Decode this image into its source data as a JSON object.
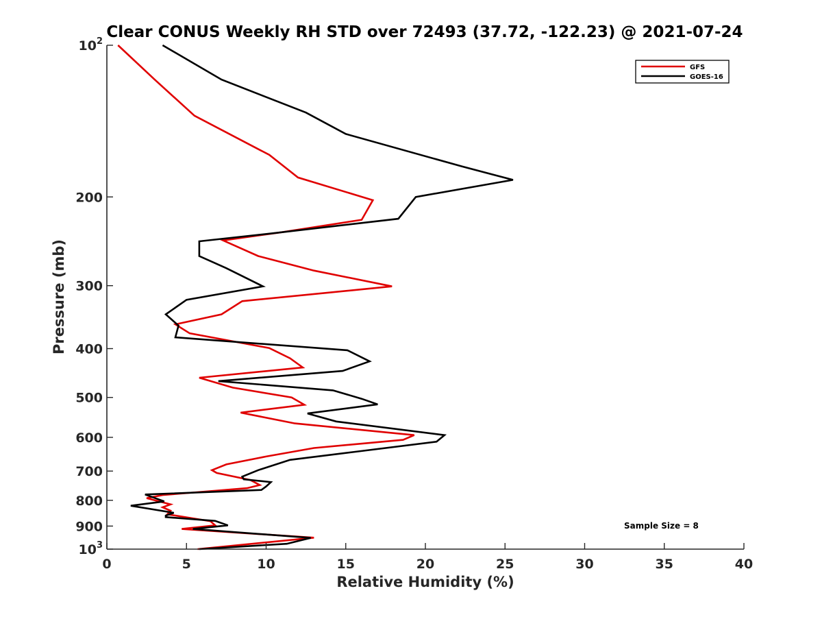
{
  "chart_data": {
    "type": "line",
    "title": "Clear CONUS Weekly RH STD over 72493 (37.72, -122.23) @ 2021-07-24",
    "xlabel": "Relative Humidity (%)",
    "ylabel": "Pressure (mb)",
    "xlim": [
      0,
      40
    ],
    "ylim": [
      100,
      1000
    ],
    "y_scale": "log",
    "y_reversed": true,
    "x_ticks": [
      0,
      5,
      10,
      15,
      20,
      25,
      30,
      35,
      40
    ],
    "x_tick_labels": [
      "0",
      "5",
      "10",
      "15",
      "20",
      "25",
      "30",
      "35",
      "40"
    ],
    "y_ticks": [
      100,
      200,
      300,
      400,
      500,
      600,
      700,
      800,
      900,
      1000
    ],
    "y_tick_labels": [
      {
        "base": "10",
        "sup": "2"
      },
      {
        "base": "200",
        "sup": ""
      },
      {
        "base": "300",
        "sup": ""
      },
      {
        "base": "400",
        "sup": ""
      },
      {
        "base": "500",
        "sup": ""
      },
      {
        "base": "600",
        "sup": ""
      },
      {
        "base": "700",
        "sup": ""
      },
      {
        "base": "800",
        "sup": ""
      },
      {
        "base": "900",
        "sup": ""
      },
      {
        "base": "10",
        "sup": "3"
      }
    ],
    "grid": false,
    "legend_position": "top-right",
    "annotation": "Sample Size = 8",
    "series": [
      {
        "name": "GFS",
        "color": "#e00000",
        "points": [
          [
            0.7,
            100
          ],
          [
            3.0,
            117
          ],
          [
            5.5,
            138
          ],
          [
            10.2,
            165
          ],
          [
            12.0,
            183
          ],
          [
            16.7,
            203
          ],
          [
            16.0,
            222
          ],
          [
            11.0,
            235
          ],
          [
            7.3,
            244
          ],
          [
            9.5,
            262
          ],
          [
            13.0,
            280
          ],
          [
            17.9,
            301
          ],
          [
            8.5,
            322
          ],
          [
            7.2,
            342
          ],
          [
            4.3,
            358
          ],
          [
            5.2,
            373
          ],
          [
            10.2,
            399
          ],
          [
            11.5,
            418
          ],
          [
            12.3,
            436
          ],
          [
            5.8,
            457
          ],
          [
            7.9,
            478
          ],
          [
            11.6,
            500
          ],
          [
            12.4,
            517
          ],
          [
            8.4,
            536
          ],
          [
            11.8,
            563
          ],
          [
            19.3,
            594
          ],
          [
            18.6,
            607
          ],
          [
            13.0,
            630
          ],
          [
            10.0,
            655
          ],
          [
            7.5,
            679
          ],
          [
            6.6,
            697
          ],
          [
            6.9,
            706
          ],
          [
            9.0,
            729
          ],
          [
            9.6,
            746
          ],
          [
            8.8,
            757
          ],
          [
            3.5,
            781
          ],
          [
            2.5,
            792
          ],
          [
            4.0,
            815
          ],
          [
            3.5,
            826
          ],
          [
            4.0,
            839
          ],
          [
            3.8,
            853
          ],
          [
            6.5,
            880
          ],
          [
            6.8,
            897
          ],
          [
            4.7,
            912
          ],
          [
            13.0,
            949
          ],
          [
            5.7,
            1000
          ]
        ]
      },
      {
        "name": "GOES-16",
        "color": "#000000",
        "points": [
          [
            3.5,
            100
          ],
          [
            7.2,
            117
          ],
          [
            12.5,
            136
          ],
          [
            15.0,
            150
          ],
          [
            22.3,
            174
          ],
          [
            25.5,
            185
          ],
          [
            19.4,
            200
          ],
          [
            18.3,
            221
          ],
          [
            10.5,
            236
          ],
          [
            5.8,
            245
          ],
          [
            5.8,
            262
          ],
          [
            7.5,
            277
          ],
          [
            9.8,
            301
          ],
          [
            5.0,
            320
          ],
          [
            3.7,
            342
          ],
          [
            4.5,
            360
          ],
          [
            4.3,
            380
          ],
          [
            15.1,
            403
          ],
          [
            16.5,
            424
          ],
          [
            14.8,
            443
          ],
          [
            7.0,
            464
          ],
          [
            14.2,
            484
          ],
          [
            16.0,
            503
          ],
          [
            17.0,
            516
          ],
          [
            12.6,
            538
          ],
          [
            14.4,
            558
          ],
          [
            21.2,
            594
          ],
          [
            20.7,
            612
          ],
          [
            15.6,
            641
          ],
          [
            11.5,
            665
          ],
          [
            9.5,
            697
          ],
          [
            8.5,
            718
          ],
          [
            8.6,
            727
          ],
          [
            10.3,
            736
          ],
          [
            10.0,
            751
          ],
          [
            9.7,
            763
          ],
          [
            2.4,
            779
          ],
          [
            3.6,
            804
          ],
          [
            1.5,
            820
          ],
          [
            4.2,
            847
          ],
          [
            3.7,
            858
          ],
          [
            3.7,
            864
          ],
          [
            6.8,
            879
          ],
          [
            7.6,
            897
          ],
          [
            5.4,
            912
          ],
          [
            12.8,
            950
          ],
          [
            11.3,
            976
          ],
          [
            5.8,
            1000
          ]
        ]
      }
    ]
  }
}
